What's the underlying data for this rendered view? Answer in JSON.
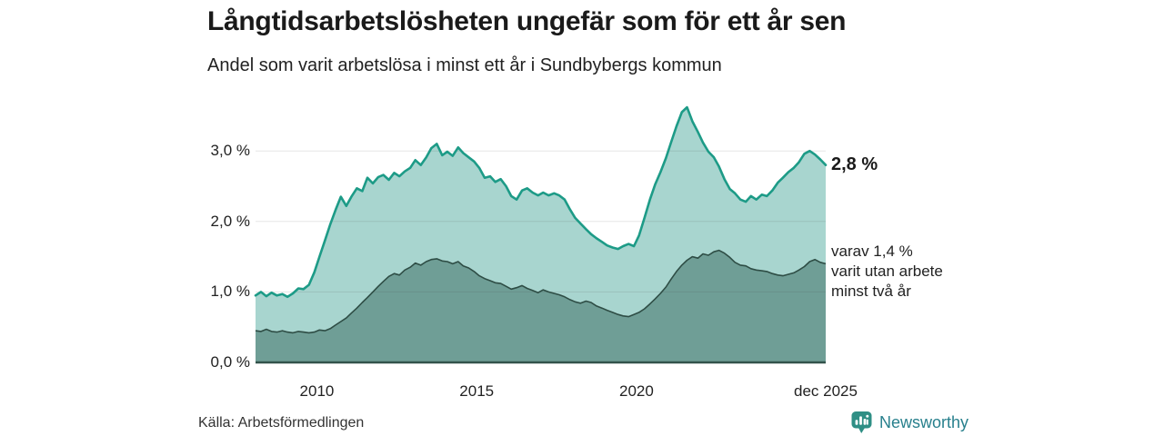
{
  "header": {
    "title": "Långtidsarbetslösheten ungefär som för ett år sen",
    "subtitle": "Andel som varit arbetslösa i minst ett år i Sundbybergs kommun"
  },
  "chart_data": {
    "type": "area",
    "title": "Långtidsarbetslösheten ungefär som för ett år sen",
    "subtitle": "Andel som varit arbetslösa i minst ett år i Sundbybergs kommun",
    "grid": true,
    "legend_position": "right-annotations",
    "x_unit": "year (monthly series, feb 2008 – dec 2025)",
    "ylim": [
      0,
      3.75
    ],
    "yticks": [
      {
        "value": 0,
        "label": "0,0 %"
      },
      {
        "value": 1,
        "label": "1,0 %"
      },
      {
        "value": 2,
        "label": "2,0 %"
      },
      {
        "value": 3,
        "label": "3,0 %"
      }
    ],
    "xticks": [
      {
        "value": 2010,
        "label": "2010"
      },
      {
        "value": 2015,
        "label": "2015"
      },
      {
        "value": 2020,
        "label": "2020"
      },
      {
        "value": 2025.92,
        "label": "dec 2025"
      }
    ],
    "colors": {
      "series1_fill": "#a8d5cf",
      "series1_line": "#1d9b87",
      "series2_fill": "#6f9e96",
      "series2_line": "#2e4d45",
      "baseline": "#33534b",
      "grid": "#dddddd"
    },
    "x": [
      2008.08,
      2008.25,
      2008.42,
      2008.58,
      2008.75,
      2008.92,
      2009.08,
      2009.25,
      2009.42,
      2009.58,
      2009.75,
      2009.92,
      2010.08,
      2010.25,
      2010.42,
      2010.58,
      2010.75,
      2010.92,
      2011.08,
      2011.25,
      2011.42,
      2011.58,
      2011.75,
      2011.92,
      2012.08,
      2012.25,
      2012.42,
      2012.58,
      2012.75,
      2012.92,
      2013.08,
      2013.25,
      2013.42,
      2013.58,
      2013.75,
      2013.92,
      2014.08,
      2014.25,
      2014.42,
      2014.58,
      2014.75,
      2014.92,
      2015.08,
      2015.25,
      2015.42,
      2015.58,
      2015.75,
      2015.92,
      2016.08,
      2016.25,
      2016.42,
      2016.58,
      2016.75,
      2016.92,
      2017.08,
      2017.25,
      2017.42,
      2017.58,
      2017.75,
      2017.92,
      2018.08,
      2018.25,
      2018.42,
      2018.58,
      2018.75,
      2018.92,
      2019.08,
      2019.25,
      2019.42,
      2019.58,
      2019.75,
      2019.92,
      2020.08,
      2020.25,
      2020.42,
      2020.58,
      2020.75,
      2020.92,
      2021.08,
      2021.25,
      2021.42,
      2021.58,
      2021.75,
      2021.92,
      2022.08,
      2022.25,
      2022.42,
      2022.58,
      2022.75,
      2022.92,
      2023.08,
      2023.25,
      2023.42,
      2023.58,
      2023.75,
      2023.92,
      2024.08,
      2024.25,
      2024.42,
      2024.58,
      2024.75,
      2024.92,
      2025.08,
      2025.25,
      2025.42,
      2025.58,
      2025.75,
      2025.92
    ],
    "series": [
      {
        "name": "Andel som varit arbetslösa minst ett år",
        "unit": "%",
        "latest_label": "2,8 %",
        "values": [
          0.95,
          1.0,
          0.94,
          0.99,
          0.95,
          0.97,
          0.93,
          0.98,
          1.05,
          1.04,
          1.1,
          1.28,
          1.5,
          1.73,
          1.96,
          2.16,
          2.35,
          2.22,
          2.35,
          2.47,
          2.43,
          2.62,
          2.54,
          2.63,
          2.66,
          2.59,
          2.69,
          2.64,
          2.71,
          2.76,
          2.87,
          2.8,
          2.91,
          3.04,
          3.1,
          2.94,
          2.99,
          2.93,
          3.05,
          2.97,
          2.91,
          2.85,
          2.76,
          2.62,
          2.64,
          2.56,
          2.6,
          2.5,
          2.36,
          2.31,
          2.44,
          2.47,
          2.41,
          2.37,
          2.41,
          2.37,
          2.4,
          2.37,
          2.31,
          2.17,
          2.05,
          1.97,
          1.89,
          1.82,
          1.76,
          1.71,
          1.66,
          1.63,
          1.61,
          1.65,
          1.68,
          1.65,
          1.8,
          2.05,
          2.31,
          2.52,
          2.7,
          2.9,
          3.12,
          3.35,
          3.55,
          3.62,
          3.42,
          3.27,
          3.12,
          2.99,
          2.91,
          2.78,
          2.6,
          2.46,
          2.4,
          2.31,
          2.28,
          2.36,
          2.31,
          2.38,
          2.36,
          2.44,
          2.55,
          2.62,
          2.7,
          2.76,
          2.84,
          2.96,
          3.0,
          2.95,
          2.88,
          2.8
        ]
      },
      {
        "name": "varav utan arbete minst två år",
        "unit": "%",
        "latest_label": "1,4 %",
        "values": [
          0.45,
          0.44,
          0.47,
          0.44,
          0.43,
          0.45,
          0.43,
          0.42,
          0.44,
          0.43,
          0.42,
          0.43,
          0.46,
          0.45,
          0.48,
          0.53,
          0.58,
          0.63,
          0.7,
          0.77,
          0.85,
          0.92,
          1.0,
          1.08,
          1.15,
          1.22,
          1.26,
          1.24,
          1.31,
          1.35,
          1.41,
          1.38,
          1.43,
          1.46,
          1.47,
          1.44,
          1.43,
          1.4,
          1.43,
          1.37,
          1.34,
          1.29,
          1.23,
          1.19,
          1.16,
          1.13,
          1.12,
          1.08,
          1.04,
          1.06,
          1.09,
          1.05,
          1.02,
          0.99,
          1.03,
          1.0,
          0.98,
          0.96,
          0.93,
          0.89,
          0.86,
          0.84,
          0.87,
          0.85,
          0.8,
          0.77,
          0.74,
          0.71,
          0.68,
          0.66,
          0.65,
          0.68,
          0.71,
          0.76,
          0.83,
          0.9,
          0.98,
          1.07,
          1.18,
          1.29,
          1.38,
          1.45,
          1.5,
          1.48,
          1.54,
          1.52,
          1.57,
          1.59,
          1.55,
          1.49,
          1.42,
          1.38,
          1.37,
          1.33,
          1.31,
          1.3,
          1.29,
          1.26,
          1.24,
          1.23,
          1.25,
          1.27,
          1.31,
          1.36,
          1.43,
          1.46,
          1.42,
          1.4
        ]
      }
    ],
    "annotations": {
      "latest_primary": "2,8 %",
      "secondary": "varav 1,4 %\nvarit utan arbete\nminst två år"
    }
  },
  "footer": {
    "source": "Källa: Arbetsförmedlingen",
    "logo_text": "Newsworthy",
    "logo_color": "#2f8f85"
  }
}
